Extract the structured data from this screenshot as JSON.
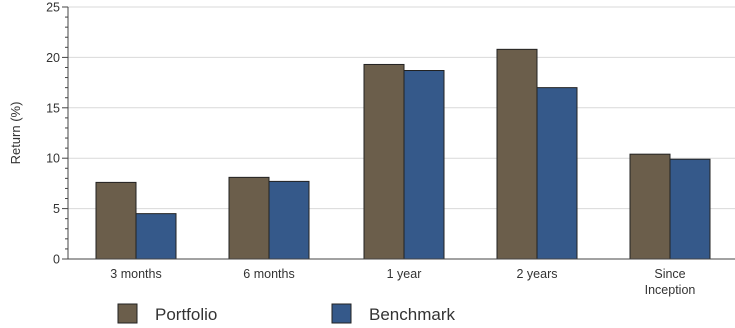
{
  "chart_data": {
    "type": "bar",
    "categories": [
      "3 months",
      "6 months",
      "1 year",
      "2 years",
      "Since Inception"
    ],
    "category_lines": [
      [
        "3 months"
      ],
      [
        "6 months"
      ],
      [
        "1 year"
      ],
      [
        "2 years"
      ],
      [
        "Since",
        "Inception"
      ]
    ],
    "series": [
      {
        "name": "Portfolio",
        "color": "#6b5e4b",
        "values": [
          7.6,
          8.1,
          19.3,
          20.8,
          10.4
        ]
      },
      {
        "name": "Benchmark",
        "color": "#35598a",
        "values": [
          4.5,
          7.7,
          18.7,
          17.0,
          9.9
        ]
      }
    ],
    "ylabel": "Return (%)",
    "xlabel": "",
    "ylim": [
      0,
      25
    ],
    "yticks": [
      0,
      5,
      10,
      15,
      20,
      25
    ],
    "grid": true,
    "legend_position": "bottom"
  }
}
